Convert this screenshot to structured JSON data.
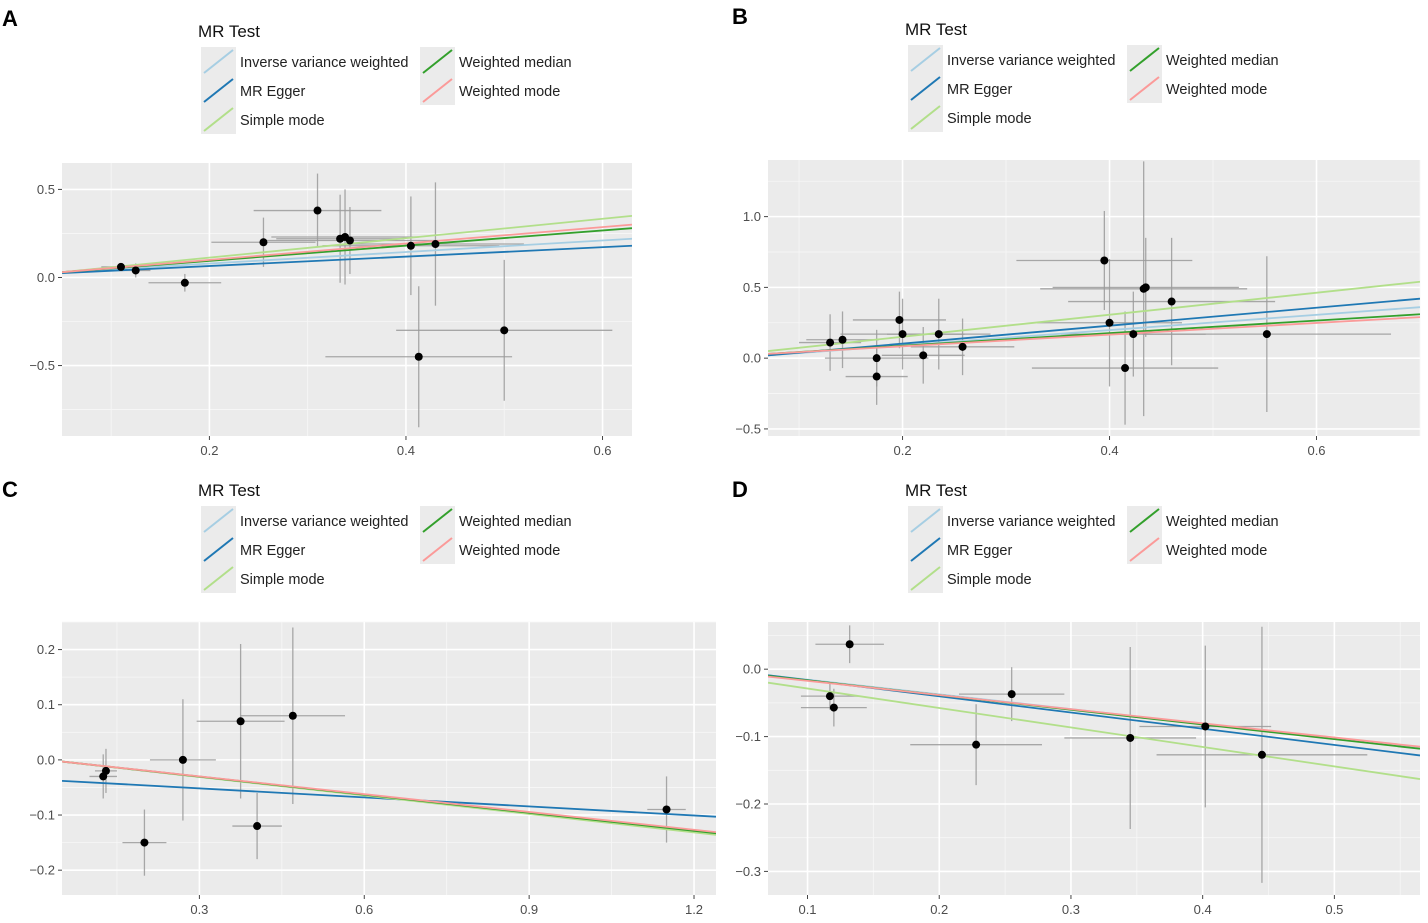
{
  "legend": {
    "title": "MR Test",
    "items": [
      {
        "name": "Inverse variance weighted",
        "color": "#a6cee3"
      },
      {
        "name": "MR Egger",
        "color": "#1f78b4"
      },
      {
        "name": "Simple mode",
        "color": "#b2df8a"
      },
      {
        "name": "Weighted median",
        "color": "#33a02c"
      },
      {
        "name": "Weighted mode",
        "color": "#fb9a99"
      }
    ]
  },
  "chart_data": [
    {
      "type": "scatter",
      "panel_label": "A",
      "xlim": [
        0.05,
        0.63
      ],
      "ylim": [
        -0.9,
        0.65
      ],
      "x_ticks": [
        {
          "v": 0.2,
          "label": "0.2"
        },
        {
          "v": 0.4,
          "label": "0.4"
        },
        {
          "v": 0.6,
          "label": "0.6"
        }
      ],
      "y_ticks": [
        {
          "v": 0.5,
          "label": "0.5"
        },
        {
          "v": 0.0,
          "label": "0.0"
        },
        {
          "v": -0.5,
          "label": "−0.5"
        }
      ],
      "points": [
        {
          "x": 0.11,
          "y": 0.06,
          "xerr": 0.02,
          "yerr": 0.02
        },
        {
          "x": 0.125,
          "y": 0.04,
          "xerr": 0.015,
          "yerr": 0.04
        },
        {
          "x": 0.175,
          "y": -0.03,
          "xerr": 0.037,
          "yerr": 0.05
        },
        {
          "x": 0.255,
          "y": 0.2,
          "xerr": 0.053,
          "yerr": 0.14
        },
        {
          "x": 0.31,
          "y": 0.38,
          "xerr": 0.065,
          "yerr": 0.21
        },
        {
          "x": 0.333,
          "y": 0.22,
          "xerr": 0.065,
          "yerr": 0.25
        },
        {
          "x": 0.338,
          "y": 0.23,
          "xerr": 0.075,
          "yerr": 0.27
        },
        {
          "x": 0.343,
          "y": 0.21,
          "xerr": 0.09,
          "yerr": 0.19
        },
        {
          "x": 0.405,
          "y": 0.18,
          "xerr": 0.09,
          "yerr": 0.28
        },
        {
          "x": 0.43,
          "y": 0.19,
          "xerr": 0.09,
          "yerr": 0.35
        },
        {
          "x": 0.5,
          "y": -0.3,
          "xerr": 0.11,
          "yerr": 0.4
        },
        {
          "x": 0.413,
          "y": -0.45,
          "xerr": 0.095,
          "yerr": 0.4
        }
      ],
      "lines": [
        {
          "method": "Inverse variance weighted",
          "x": [
            0.05,
            0.63
          ],
          "y": [
            0.03,
            0.22
          ]
        },
        {
          "method": "MR Egger",
          "x": [
            0.05,
            0.63
          ],
          "y": [
            0.025,
            0.18
          ]
        },
        {
          "method": "Simple mode",
          "x": [
            0.05,
            0.63
          ],
          "y": [
            0.03,
            0.35
          ]
        },
        {
          "method": "Weighted median",
          "x": [
            0.05,
            0.63
          ],
          "y": [
            0.03,
            0.28
          ]
        },
        {
          "method": "Weighted mode",
          "x": [
            0.05,
            0.63
          ],
          "y": [
            0.03,
            0.3
          ]
        }
      ]
    },
    {
      "type": "scatter",
      "panel_label": "B",
      "xlim": [
        0.07,
        0.7
      ],
      "ylim": [
        -0.55,
        1.4
      ],
      "x_ticks": [
        {
          "v": 0.2,
          "label": "0.2"
        },
        {
          "v": 0.4,
          "label": "0.4"
        },
        {
          "v": 0.6,
          "label": "0.6"
        }
      ],
      "y_ticks": [
        {
          "v": 1.0,
          "label": "1.0"
        },
        {
          "v": 0.5,
          "label": "0.5"
        },
        {
          "v": 0.0,
          "label": "0.0"
        },
        {
          "v": -0.5,
          "label": "−0.5"
        }
      ],
      "points": [
        {
          "x": 0.13,
          "y": 0.11,
          "xerr": 0.03,
          "yerr": 0.2
        },
        {
          "x": 0.142,
          "y": 0.13,
          "xerr": 0.035,
          "yerr": 0.2
        },
        {
          "x": 0.175,
          "y": 0.0,
          "xerr": 0.05,
          "yerr": 0.2
        },
        {
          "x": 0.175,
          "y": -0.13,
          "xerr": 0.03,
          "yerr": 0.2
        },
        {
          "x": 0.197,
          "y": 0.27,
          "xerr": 0.045,
          "yerr": 0.2
        },
        {
          "x": 0.2,
          "y": 0.17,
          "xerr": 0.06,
          "yerr": 0.25
        },
        {
          "x": 0.22,
          "y": 0.02,
          "xerr": 0.04,
          "yerr": 0.2
        },
        {
          "x": 0.235,
          "y": 0.17,
          "xerr": 0.05,
          "yerr": 0.25
        },
        {
          "x": 0.258,
          "y": 0.08,
          "xerr": 0.05,
          "yerr": 0.2
        },
        {
          "x": 0.395,
          "y": 0.69,
          "xerr": 0.085,
          "yerr": 0.35
        },
        {
          "x": 0.4,
          "y": 0.25,
          "xerr": 0.07,
          "yerr": 0.45
        },
        {
          "x": 0.415,
          "y": -0.07,
          "xerr": 0.09,
          "yerr": 0.4
        },
        {
          "x": 0.423,
          "y": 0.17,
          "xerr": 0.07,
          "yerr": 0.3
        },
        {
          "x": 0.433,
          "y": 0.49,
          "xerr": 0.1,
          "yerr": 0.9
        },
        {
          "x": 0.435,
          "y": 0.5,
          "xerr": 0.09,
          "yerr": 0.35
        },
        {
          "x": 0.46,
          "y": 0.4,
          "xerr": 0.1,
          "yerr": 0.45
        },
        {
          "x": 0.552,
          "y": 0.17,
          "xerr": 0.12,
          "yerr": 0.55
        }
      ],
      "lines": [
        {
          "method": "Inverse variance weighted",
          "x": [
            0.07,
            0.7
          ],
          "y": [
            0.02,
            0.36
          ]
        },
        {
          "method": "MR Egger",
          "x": [
            0.07,
            0.7
          ],
          "y": [
            0.02,
            0.42
          ]
        },
        {
          "method": "Simple mode",
          "x": [
            0.07,
            0.7
          ],
          "y": [
            0.05,
            0.54
          ]
        },
        {
          "method": "Weighted median",
          "x": [
            0.07,
            0.7
          ],
          "y": [
            0.03,
            0.31
          ]
        },
        {
          "method": "Weighted mode",
          "x": [
            0.07,
            0.7
          ],
          "y": [
            0.03,
            0.29
          ]
        }
      ]
    },
    {
      "type": "scatter",
      "panel_label": "C",
      "xlim": [
        0.05,
        1.24
      ],
      "ylim": [
        -0.245,
        0.25
      ],
      "x_ticks": [
        {
          "v": 0.3,
          "label": "0.3"
        },
        {
          "v": 0.6,
          "label": "0.6"
        },
        {
          "v": 0.9,
          "label": "0.9"
        },
        {
          "v": 1.2,
          "label": "1.2"
        }
      ],
      "y_ticks": [
        {
          "v": 0.2,
          "label": "0.2"
        },
        {
          "v": 0.1,
          "label": "0.1"
        },
        {
          "v": 0.0,
          "label": "0.0"
        },
        {
          "v": -0.1,
          "label": "−0.1"
        },
        {
          "v": -0.2,
          "label": "−0.2"
        }
      ],
      "points": [
        {
          "x": 0.13,
          "y": -0.02,
          "xerr": 0.02,
          "yerr": 0.04
        },
        {
          "x": 0.125,
          "y": -0.03,
          "xerr": 0.025,
          "yerr": 0.04
        },
        {
          "x": 0.2,
          "y": -0.15,
          "xerr": 0.04,
          "yerr": 0.06
        },
        {
          "x": 0.27,
          "y": 0.0,
          "xerr": 0.06,
          "yerr": 0.11
        },
        {
          "x": 0.375,
          "y": 0.07,
          "xerr": 0.08,
          "yerr": 0.14
        },
        {
          "x": 0.405,
          "y": -0.12,
          "xerr": 0.045,
          "yerr": 0.06
        },
        {
          "x": 0.47,
          "y": 0.08,
          "xerr": 0.095,
          "yerr": 0.16
        },
        {
          "x": 1.15,
          "y": -0.09,
          "xerr": 0.035,
          "yerr": 0.06
        }
      ],
      "lines": [
        {
          "method": "Inverse variance weighted",
          "x": [
            0.05,
            1.24
          ],
          "y": [
            -0.003,
            -0.133
          ]
        },
        {
          "method": "MR Egger",
          "x": [
            0.05,
            1.24
          ],
          "y": [
            -0.038,
            -0.103
          ]
        },
        {
          "method": "Simple mode",
          "x": [
            0.05,
            1.24
          ],
          "y": [
            -0.003,
            -0.136
          ]
        },
        {
          "method": "Weighted median",
          "x": [
            0.05,
            1.24
          ],
          "y": [
            -0.003,
            -0.133
          ]
        },
        {
          "method": "Weighted mode",
          "x": [
            0.05,
            1.24
          ],
          "y": [
            -0.003,
            -0.131
          ]
        }
      ]
    },
    {
      "type": "scatter",
      "panel_label": "D",
      "xlim": [
        0.07,
        0.565
      ],
      "ylim": [
        -0.335,
        0.07
      ],
      "x_ticks": [
        {
          "v": 0.1,
          "label": "0.1"
        },
        {
          "v": 0.2,
          "label": "0.2"
        },
        {
          "v": 0.3,
          "label": "0.3"
        },
        {
          "v": 0.4,
          "label": "0.4"
        },
        {
          "v": 0.5,
          "label": "0.5"
        }
      ],
      "y_ticks": [
        {
          "v": 0.0,
          "label": "0.0"
        },
        {
          "v": -0.1,
          "label": "−0.1"
        },
        {
          "v": -0.2,
          "label": "−0.2"
        },
        {
          "v": -0.3,
          "label": "−0.3"
        }
      ],
      "points": [
        {
          "x": 0.132,
          "y": 0.037,
          "xerr": 0.026,
          "yerr": 0.028
        },
        {
          "x": 0.117,
          "y": -0.04,
          "xerr": 0.022,
          "yerr": 0.02
        },
        {
          "x": 0.12,
          "y": -0.057,
          "xerr": 0.025,
          "yerr": 0.028
        },
        {
          "x": 0.228,
          "y": -0.112,
          "xerr": 0.05,
          "yerr": 0.06
        },
        {
          "x": 0.255,
          "y": -0.037,
          "xerr": 0.04,
          "yerr": 0.04
        },
        {
          "x": 0.345,
          "y": -0.102,
          "xerr": 0.05,
          "yerr": 0.135
        },
        {
          "x": 0.402,
          "y": -0.085,
          "xerr": 0.05,
          "yerr": 0.12
        },
        {
          "x": 0.445,
          "y": -0.127,
          "xerr": 0.08,
          "yerr": 0.19
        }
      ],
      "lines": [
        {
          "method": "Inverse variance weighted",
          "x": [
            0.07,
            0.565
          ],
          "y": [
            -0.009,
            -0.117
          ]
        },
        {
          "method": "MR Egger",
          "x": [
            0.07,
            0.565
          ],
          "y": [
            -0.009,
            -0.128
          ]
        },
        {
          "method": "Simple mode",
          "x": [
            0.07,
            0.565
          ],
          "y": [
            -0.02,
            -0.163
          ]
        },
        {
          "method": "Weighted median",
          "x": [
            0.07,
            0.565
          ],
          "y": [
            -0.01,
            -0.118
          ]
        },
        {
          "method": "Weighted mode",
          "x": [
            0.07,
            0.565
          ],
          "y": [
            -0.011,
            -0.115
          ]
        }
      ]
    }
  ]
}
